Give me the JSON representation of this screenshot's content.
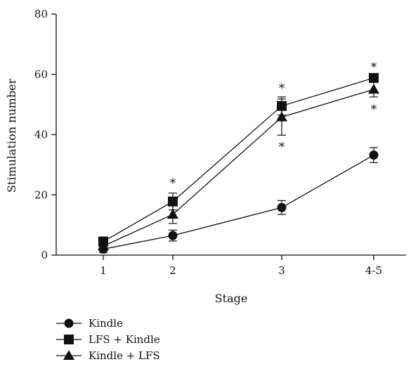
{
  "chart_data": {
    "type": "line",
    "xlabel": "Stage",
    "ylabel": "Stimulation number",
    "categories": [
      "1",
      "2",
      "3",
      "4-5"
    ],
    "ylim": [
      0,
      80
    ],
    "yticks": [
      0,
      20,
      40,
      60,
      80
    ],
    "grid": false,
    "legend_position": "bottom-left",
    "series": [
      {
        "name": "Kindle",
        "marker": "circle",
        "values": [
          2,
          6.5,
          15.8,
          33.2
        ],
        "errors": [
          1.2,
          1.8,
          2.3,
          2.5
        ],
        "color": "#111111"
      },
      {
        "name": "LFS + Kindle",
        "marker": "square",
        "values": [
          4.5,
          17.8,
          49.5,
          58.8
        ],
        "errors": [
          1.5,
          2.8,
          3.0,
          1.2
        ],
        "color": "#111111"
      },
      {
        "name": "Kindle + LFS",
        "marker": "triangle",
        "values": [
          3,
          13.5,
          45.8,
          55
        ],
        "errors": [
          1.2,
          3.0,
          6.0,
          2.5
        ],
        "color": "#111111"
      }
    ],
    "annotations": [
      {
        "text": "*",
        "category": "2",
        "y": 24.0
      },
      {
        "text": "*",
        "category": "3",
        "y": 55.5
      },
      {
        "text": "*",
        "category": "3",
        "y": 36.0
      },
      {
        "text": "*",
        "category": "4-5",
        "y": 62.5
      },
      {
        "text": "*",
        "category": "4-5",
        "y": 48.5
      }
    ]
  }
}
